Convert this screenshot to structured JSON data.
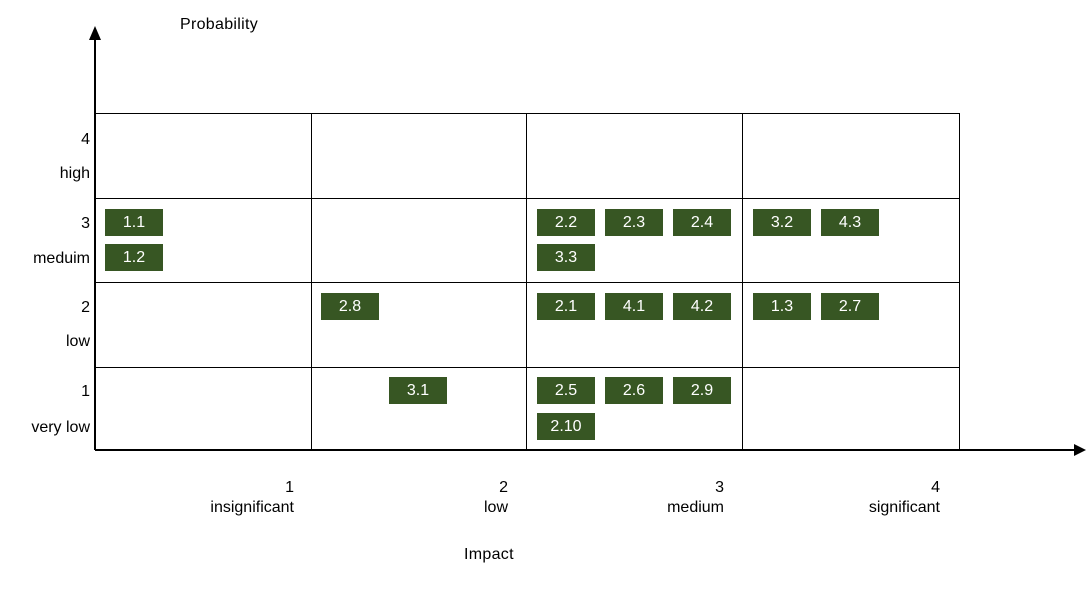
{
  "axes": {
    "y_title": "Probability",
    "x_title": "Impact"
  },
  "rows": [
    {
      "number": "4",
      "label": "high"
    },
    {
      "number": "3",
      "label": "meduim"
    },
    {
      "number": "2",
      "label": "low"
    },
    {
      "number": "1",
      "label": "very low"
    }
  ],
  "columns": [
    {
      "number": "1",
      "label": "insignificant"
    },
    {
      "number": "2",
      "label": "low"
    },
    {
      "number": "3",
      "label": "medium"
    },
    {
      "number": "4",
      "label": "significant"
    }
  ],
  "risk_items": {
    "r3c1": [
      "1.1",
      "1.2"
    ],
    "r3c3": [
      "2.2",
      "2.3",
      "2.4",
      "3.3"
    ],
    "r3c4": [
      "3.2",
      "4.3"
    ],
    "r2c2": [
      "2.8"
    ],
    "r2c3": [
      "2.1",
      "4.1",
      "4.2"
    ],
    "r2c4": [
      "1.3",
      "2.7"
    ],
    "r1c2": [
      "3.1"
    ],
    "r1c3": [
      "2.5",
      "2.6",
      "2.9",
      "2.10"
    ]
  },
  "colors": {
    "tag_background": "#375623",
    "tag_text": "#ffffff",
    "lines": "#000000"
  }
}
